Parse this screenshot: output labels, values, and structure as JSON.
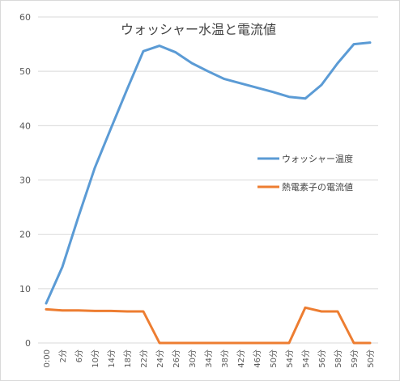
{
  "chart_data": {
    "type": "line",
    "title": "ウォッシャー水温と電流値",
    "xlabel": "",
    "ylabel": "",
    "ylim": [
      0,
      60
    ],
    "yticks": [
      0,
      10,
      20,
      30,
      40,
      50,
      60
    ],
    "grid": "horizontal",
    "legend_position": "right",
    "categories": [
      "0:00",
      "2分",
      "6分",
      "10分",
      "14分",
      "18分",
      "22分",
      "24分",
      "26分",
      "30分",
      "34分",
      "38分",
      "42分",
      "46分",
      "50分",
      "54分",
      "54分",
      "56分",
      "58分",
      "59分",
      "50分"
    ],
    "series": [
      {
        "name": "ウォッシャー温度",
        "color": "#5B9BD5",
        "values": [
          7.3,
          14.0,
          23.3,
          32.2,
          39.5,
          46.7,
          53.7,
          54.7,
          53.5,
          51.5,
          50.0,
          48.6,
          47.8,
          47.0,
          46.2,
          45.3,
          45.0,
          47.5,
          51.5,
          55.0,
          55.3
        ]
      },
      {
        "name": "熱電素子の電流値",
        "color": "#ED7D31",
        "values": [
          6.2,
          6.0,
          6.0,
          5.9,
          5.9,
          5.8,
          5.8,
          0,
          0,
          0,
          0,
          0,
          0,
          0,
          0,
          0,
          6.5,
          5.8,
          5.8,
          0,
          0
        ]
      }
    ]
  }
}
